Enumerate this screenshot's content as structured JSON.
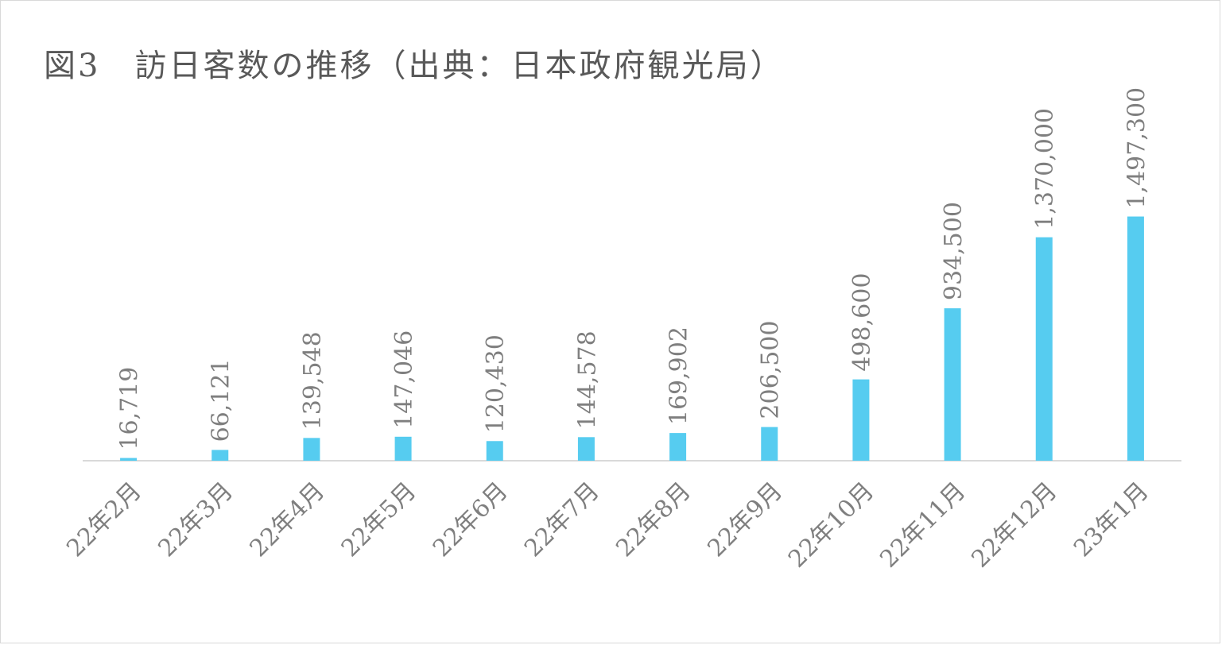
{
  "chart_data": {
    "type": "bar",
    "title": "図3　訪日客数の推移（出典：日本政府観光局）",
    "xlabel": "",
    "ylabel": "",
    "categories": [
      "22年2月",
      "22年3月",
      "22年4月",
      "22年5月",
      "22年6月",
      "22年7月",
      "22年8月",
      "22年9月",
      "22年10月",
      "22年11月",
      "22年12月",
      "23年1月"
    ],
    "values": [
      16719,
      66121,
      139548,
      147046,
      120430,
      144578,
      169902,
      206500,
      498600,
      934500,
      1370000,
      1497300
    ],
    "data_labels": [
      "16,719",
      "66,121",
      "139,548",
      "147,046",
      "120,430",
      "144,578",
      "169,902",
      "206,500",
      "498,600",
      "934,500",
      "1,370,000",
      "1,497,300"
    ],
    "ylim": [
      0,
      1500000
    ],
    "grid": false,
    "legend": "none",
    "bar_color": "#56CCF0",
    "axis_color": "#d9d9d9"
  }
}
